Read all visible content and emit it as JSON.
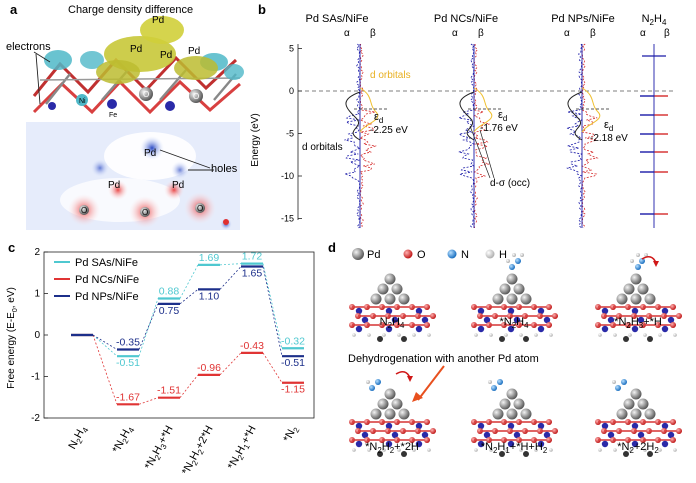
{
  "panel_a": {
    "letter": "a",
    "title": "Charge density difference",
    "label_electrons": "electrons",
    "label_holes": "holes",
    "atom_pd": "Pd",
    "atom_o": "O",
    "atom_fe": "Fe",
    "atom_ni": "Ni"
  },
  "panel_b": {
    "letter": "b",
    "ylabel": "Energy (eV)",
    "yticks": [
      "5",
      "0",
      "-5",
      "-10",
      "-15"
    ],
    "columns": [
      {
        "title": "Pd SAs/NiFe",
        "alpha": "α",
        "beta": "β"
      },
      {
        "title": "Pd NCs/NiFe",
        "alpha": "α",
        "beta": "β"
      },
      {
        "title": "Pd NPs/NiFe",
        "alpha": "α",
        "beta": "β"
      },
      {
        "title": "N",
        "title_sub": "2",
        "title_after": "H",
        "title_sub2": "4",
        "alpha": "α",
        "beta": "β"
      }
    ],
    "ann_d_orbitals_1": "d orbitals",
    "ann_d_orbitals_2": "d orbitals",
    "ann_eps": "ε",
    "ann_eps_sub": "d",
    "ed_values": [
      "-2.25 eV",
      "-1.76 eV",
      "-2.18 eV"
    ],
    "ann_dsigma": "d-σ (occ)",
    "colors": {
      "alpha_line": "#1a1aa8",
      "beta_line": "#d42a2a",
      "dband": "#222222",
      "orbital_yellow": "#f0c030"
    }
  },
  "panel_c": {
    "letter": "c",
    "ylabel": "Free energy (E-E",
    "ylabel_sub": "0",
    "ylabel_after": ", eV)",
    "yticks": [
      "2",
      "1",
      "0",
      "-1",
      "-2"
    ],
    "legend": [
      {
        "name": "Pd SAs/NiFe",
        "color": "#4fc8d0"
      },
      {
        "name": "Pd NCs/NiFe",
        "color": "#e03434"
      },
      {
        "name": "Pd NPs/NiFe",
        "color": "#1c2f8a"
      }
    ],
    "xticks": [
      {
        "pre": "N",
        "s1": "2",
        "mid": "H",
        "s2": "4",
        "post": ""
      },
      {
        "pre": "*N",
        "s1": "2",
        "mid": "H",
        "s2": "4",
        "post": ""
      },
      {
        "pre": "*N",
        "s1": "2",
        "mid": "H",
        "s2": "3",
        "post": "+*H"
      },
      {
        "pre": "*N",
        "s1": "2",
        "mid": "H",
        "s2": "2",
        "post": "+2*H"
      },
      {
        "pre": "*N",
        "s1": "2",
        "mid": "H",
        "s2": "1",
        "post": "+*H"
      },
      {
        "pre": "*N",
        "s1": "2",
        "mid": "",
        "s2": "",
        "post": ""
      }
    ]
  },
  "chart_data": {
    "type": "line",
    "ylim": [
      -2,
      2
    ],
    "series": [
      {
        "name": "Pd SAs/NiFe",
        "values": [
          0,
          -0.51,
          0.88,
          1.69,
          1.72,
          -0.32
        ]
      },
      {
        "name": "Pd NCs/NiFe",
        "values": [
          0,
          -1.67,
          -1.51,
          -0.96,
          -0.43,
          -1.15
        ]
      },
      {
        "name": "Pd NPs/NiFe",
        "values": [
          0,
          -0.35,
          0.75,
          1.1,
          1.65,
          -0.51
        ]
      }
    ],
    "labels": {
      "Pd SAs/NiFe": [
        "-0.51",
        "0.88",
        "1.69",
        "1.72",
        "-0.32"
      ],
      "Pd NCs/NiFe": [
        "-1.67",
        "-1.51",
        "-0.96",
        "-0.43",
        "-1.15"
      ],
      "Pd NPs/NiFe": [
        "-0.35",
        "0.75",
        "1.10",
        "1.65",
        "-0.51"
      ]
    }
  },
  "panel_d": {
    "letter": "d",
    "legend": [
      {
        "name": "Pd",
        "color": "#7a7a7a"
      },
      {
        "name": "O",
        "color": "#e03030"
      },
      {
        "name": "N",
        "color": "#2f8fd8"
      },
      {
        "name": "H",
        "color": "#dddddd"
      }
    ],
    "note": "Dehydrogenation with another Pd atom",
    "structures": [
      {
        "pre": "N",
        "s1": "2",
        "mid": "H",
        "s2": "4",
        "post": ""
      },
      {
        "pre": "*N",
        "s1": "2",
        "mid": "H",
        "s2": "4",
        "post": ""
      },
      {
        "pre": "*N",
        "s1": "2",
        "mid": "H",
        "s2": "3",
        "post": "+*H"
      },
      {
        "pre": "*N",
        "s1": "2",
        "mid": "H",
        "s2": "2",
        "post": "+*2H"
      },
      {
        "pre": "*N",
        "s1": "2",
        "mid": "H",
        "s2": "1",
        "post": "+*H+H",
        "s3": "2"
      },
      {
        "pre": "*N",
        "s1": "2",
        "mid": "",
        "s2": "",
        "post": "+2H",
        "s3": "2"
      }
    ]
  }
}
